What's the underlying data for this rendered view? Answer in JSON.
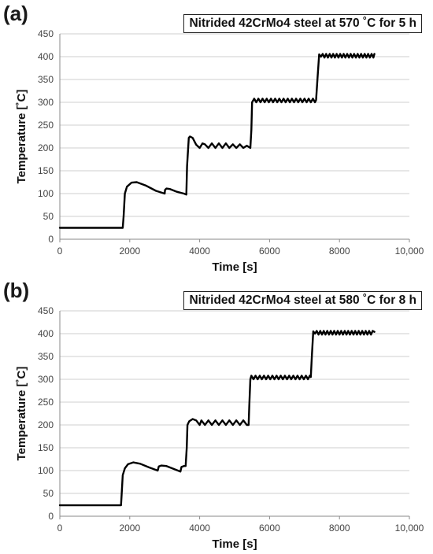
{
  "chart_data": [
    {
      "panel": "(a)",
      "type": "line",
      "title": "Nitrided 42CrMo4 steel at 570 ˚C for 5 h",
      "xlabel": "Time [s]",
      "ylabel": "Temperature [˚C]",
      "xlim": [
        0,
        10000
      ],
      "ylim": [
        0,
        450
      ],
      "xticks": [
        "0",
        "2000",
        "4000",
        "6000",
        "8000",
        "10,000"
      ],
      "yticks": [
        "0",
        "50",
        "100",
        "150",
        "200",
        "250",
        "300",
        "350",
        "400",
        "450"
      ],
      "grid": "horizontal",
      "series": [
        {
          "x": [
            0,
            1800,
            1825,
            1860,
            1920,
            2050,
            2200,
            2450,
            2750,
            3000,
            3010,
            3050,
            3150,
            3350,
            3550,
            3620,
            3640,
            3690,
            3720,
            3800,
            3900,
            4000,
            4080,
            4150,
            4250,
            4350,
            4450,
            4550,
            4650,
            4750,
            4850,
            4950,
            5050,
            5150,
            5250,
            5350,
            5450,
            5480,
            5500,
            5560,
            5620,
            5680,
            5740,
            5800,
            5860,
            5920,
            5980,
            6040,
            6100,
            6160,
            6220,
            6280,
            6340,
            6400,
            6460,
            6520,
            6580,
            6640,
            6700,
            6760,
            6820,
            6880,
            6940,
            7000,
            7060,
            7120,
            7180,
            7240,
            7300,
            7330,
            7370,
            7420,
            7470,
            7520,
            7570,
            7620,
            7670,
            7720,
            7770,
            7820,
            7870,
            7920,
            7970,
            8020,
            8070,
            8120,
            8170,
            8220,
            8270,
            8320,
            8370,
            8420,
            8470,
            8520,
            8570,
            8620,
            8670,
            8720,
            8770,
            8820,
            8870,
            8920,
            8970,
            9000
          ],
          "y": [
            25,
            25,
            50,
            100,
            115,
            124,
            125,
            118,
            106,
            100,
            108,
            111,
            110,
            104,
            100,
            98,
            160,
            222,
            225,
            222,
            207,
            200,
            210,
            208,
            200,
            210,
            200,
            210,
            200,
            210,
            200,
            208,
            200,
            208,
            200,
            205,
            200,
            240,
            300,
            308,
            300,
            308,
            300,
            308,
            300,
            308,
            300,
            308,
            300,
            308,
            300,
            308,
            300,
            308,
            300,
            308,
            300,
            308,
            300,
            308,
            300,
            308,
            300,
            308,
            300,
            308,
            300,
            308,
            300,
            305,
            350,
            405,
            400,
            406,
            398,
            406,
            398,
            406,
            398,
            406,
            398,
            406,
            398,
            406,
            398,
            406,
            398,
            406,
            398,
            406,
            398,
            406,
            398,
            406,
            398,
            406,
            398,
            406,
            398,
            406,
            398,
            406,
            398,
            406
          ]
        }
      ]
    },
    {
      "panel": "(b)",
      "type": "line",
      "title": "Nitrided 42CrMo4 steel at 580 ˚C for 8 h",
      "xlabel": "Time [s]",
      "ylabel": "Temperature [˚C]",
      "xlim": [
        0,
        10000
      ],
      "ylim": [
        0,
        450
      ],
      "xticks": [
        "0",
        "2000",
        "4000",
        "6000",
        "8000",
        "10,000"
      ],
      "yticks": [
        "0",
        "50",
        "100",
        "150",
        "200",
        "250",
        "300",
        "350",
        "400",
        "450"
      ],
      "grid": "horizontal",
      "series": [
        {
          "x": [
            0,
            1750,
            1770,
            1800,
            1860,
            1950,
            2100,
            2300,
            2550,
            2800,
            2830,
            2900,
            3050,
            3250,
            3450,
            3480,
            3550,
            3600,
            3630,
            3650,
            3700,
            3800,
            3900,
            4000,
            4050,
            4150,
            4250,
            4350,
            4450,
            4550,
            4650,
            4750,
            4850,
            4950,
            5050,
            5150,
            5250,
            5350,
            5400,
            5420,
            5450,
            5480,
            5540,
            5600,
            5660,
            5720,
            5780,
            5840,
            5900,
            5960,
            6020,
            6080,
            6140,
            6200,
            6260,
            6320,
            6380,
            6440,
            6500,
            6560,
            6620,
            6680,
            6740,
            6800,
            6860,
            6920,
            6980,
            7040,
            7100,
            7150,
            7180,
            7210,
            7250,
            7300,
            7350,
            7400,
            7450,
            7500,
            7550,
            7600,
            7650,
            7700,
            7750,
            7800,
            7850,
            7900,
            7950,
            8000,
            8050,
            8100,
            8150,
            8200,
            8250,
            8300,
            8350,
            8400,
            8450,
            8500,
            8550,
            8600,
            8650,
            8700,
            8750,
            8800,
            8850,
            8900,
            8950,
            9000
          ],
          "y": [
            24,
            24,
            50,
            90,
            105,
            114,
            118,
            115,
            107,
            100,
            109,
            111,
            110,
            104,
            98,
            108,
            110,
            110,
            150,
            200,
            208,
            213,
            210,
            200,
            210,
            200,
            210,
            200,
            210,
            200,
            210,
            200,
            210,
            200,
            210,
            200,
            210,
            200,
            200,
            240,
            300,
            308,
            300,
            308,
            300,
            308,
            300,
            308,
            300,
            308,
            300,
            308,
            300,
            308,
            300,
            308,
            300,
            308,
            300,
            308,
            300,
            308,
            300,
            308,
            300,
            308,
            300,
            308,
            300,
            308,
            305,
            350,
            405,
            400,
            406,
            398,
            406,
            398,
            406,
            398,
            406,
            398,
            406,
            398,
            406,
            398,
            406,
            398,
            406,
            398,
            406,
            398,
            406,
            398,
            406,
            398,
            406,
            398,
            406,
            398,
            406,
            398,
            406,
            398,
            406,
            398,
            406,
            404
          ]
        }
      ]
    }
  ]
}
